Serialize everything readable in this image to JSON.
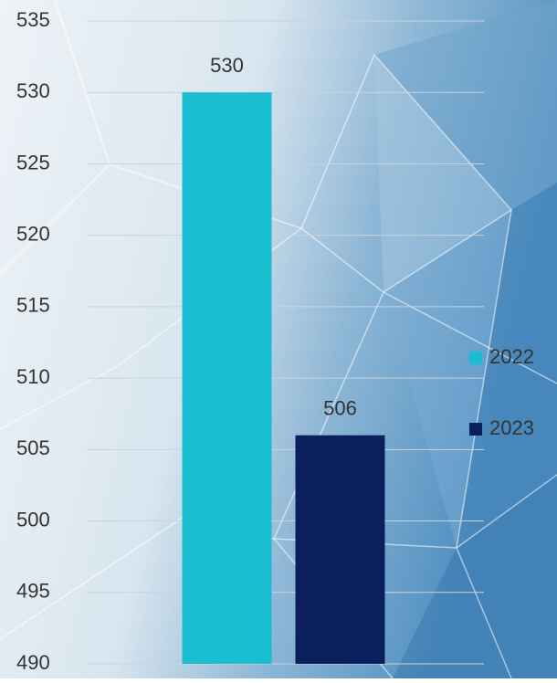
{
  "chart_data": {
    "type": "bar",
    "categories": [
      null
    ],
    "series": [
      {
        "name": "2022",
        "color": "#19bed0",
        "values": [
          530
        ]
      },
      {
        "name": "2023",
        "color": "#0b1f5c",
        "values": [
          506
        ]
      }
    ],
    "ylim": [
      490,
      535
    ],
    "yticks": [
      490,
      495,
      500,
      505,
      510,
      515,
      520,
      525,
      530,
      535
    ],
    "grid": true,
    "legend": "right"
  }
}
